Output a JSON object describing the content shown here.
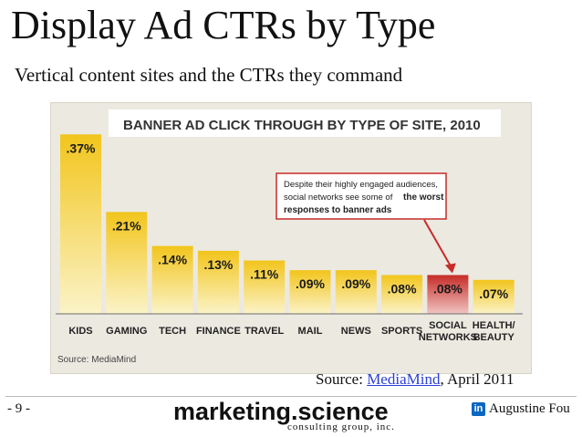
{
  "slide": {
    "title": "Display Ad CTRs by Type",
    "subtitle": "Vertical content sites and the CTRs they command",
    "source_prefix": "Source: ",
    "source_link": "MediaMind",
    "source_suffix": ", April 2011",
    "page_number": "- 9 -",
    "brand_main": "marketing.science",
    "brand_sub": "consulting group, inc.",
    "author": "Augustine Fou",
    "linkedin_glyph": "in"
  },
  "chart_data": {
    "type": "bar",
    "title": "BANNER AD CLICK THROUGH BY TYPE OF SITE, 2010",
    "categories": [
      "KIDS",
      "GAMING",
      "TECH",
      "FINANCE",
      "TRAVEL",
      "MAIL",
      "NEWS",
      "SPORTS",
      "SOCIAL NETWORKS",
      "HEALTH/ BEAUTY"
    ],
    "values": [
      0.37,
      0.21,
      0.14,
      0.13,
      0.11,
      0.09,
      0.09,
      0.08,
      0.08,
      0.07
    ],
    "labels": [
      ".37%",
      ".21%",
      ".14%",
      ".13%",
      ".11%",
      ".09%",
      ".09%",
      ".08%",
      ".08%",
      ".07%"
    ],
    "highlight_index": 8,
    "annotation": {
      "text": "Despite their highly engaged audiences, social networks see some of",
      "emphasis": "the worst responses to banner ads"
    },
    "source_note": "Source: MediaMind",
    "colors": {
      "bar": "#f2c51c",
      "bar_light": "#fbf3c8",
      "highlight": "#c62c28",
      "highlight_light": "#f0c4c1",
      "title_bg": "#ffffff",
      "title_text": "#333333"
    }
  }
}
